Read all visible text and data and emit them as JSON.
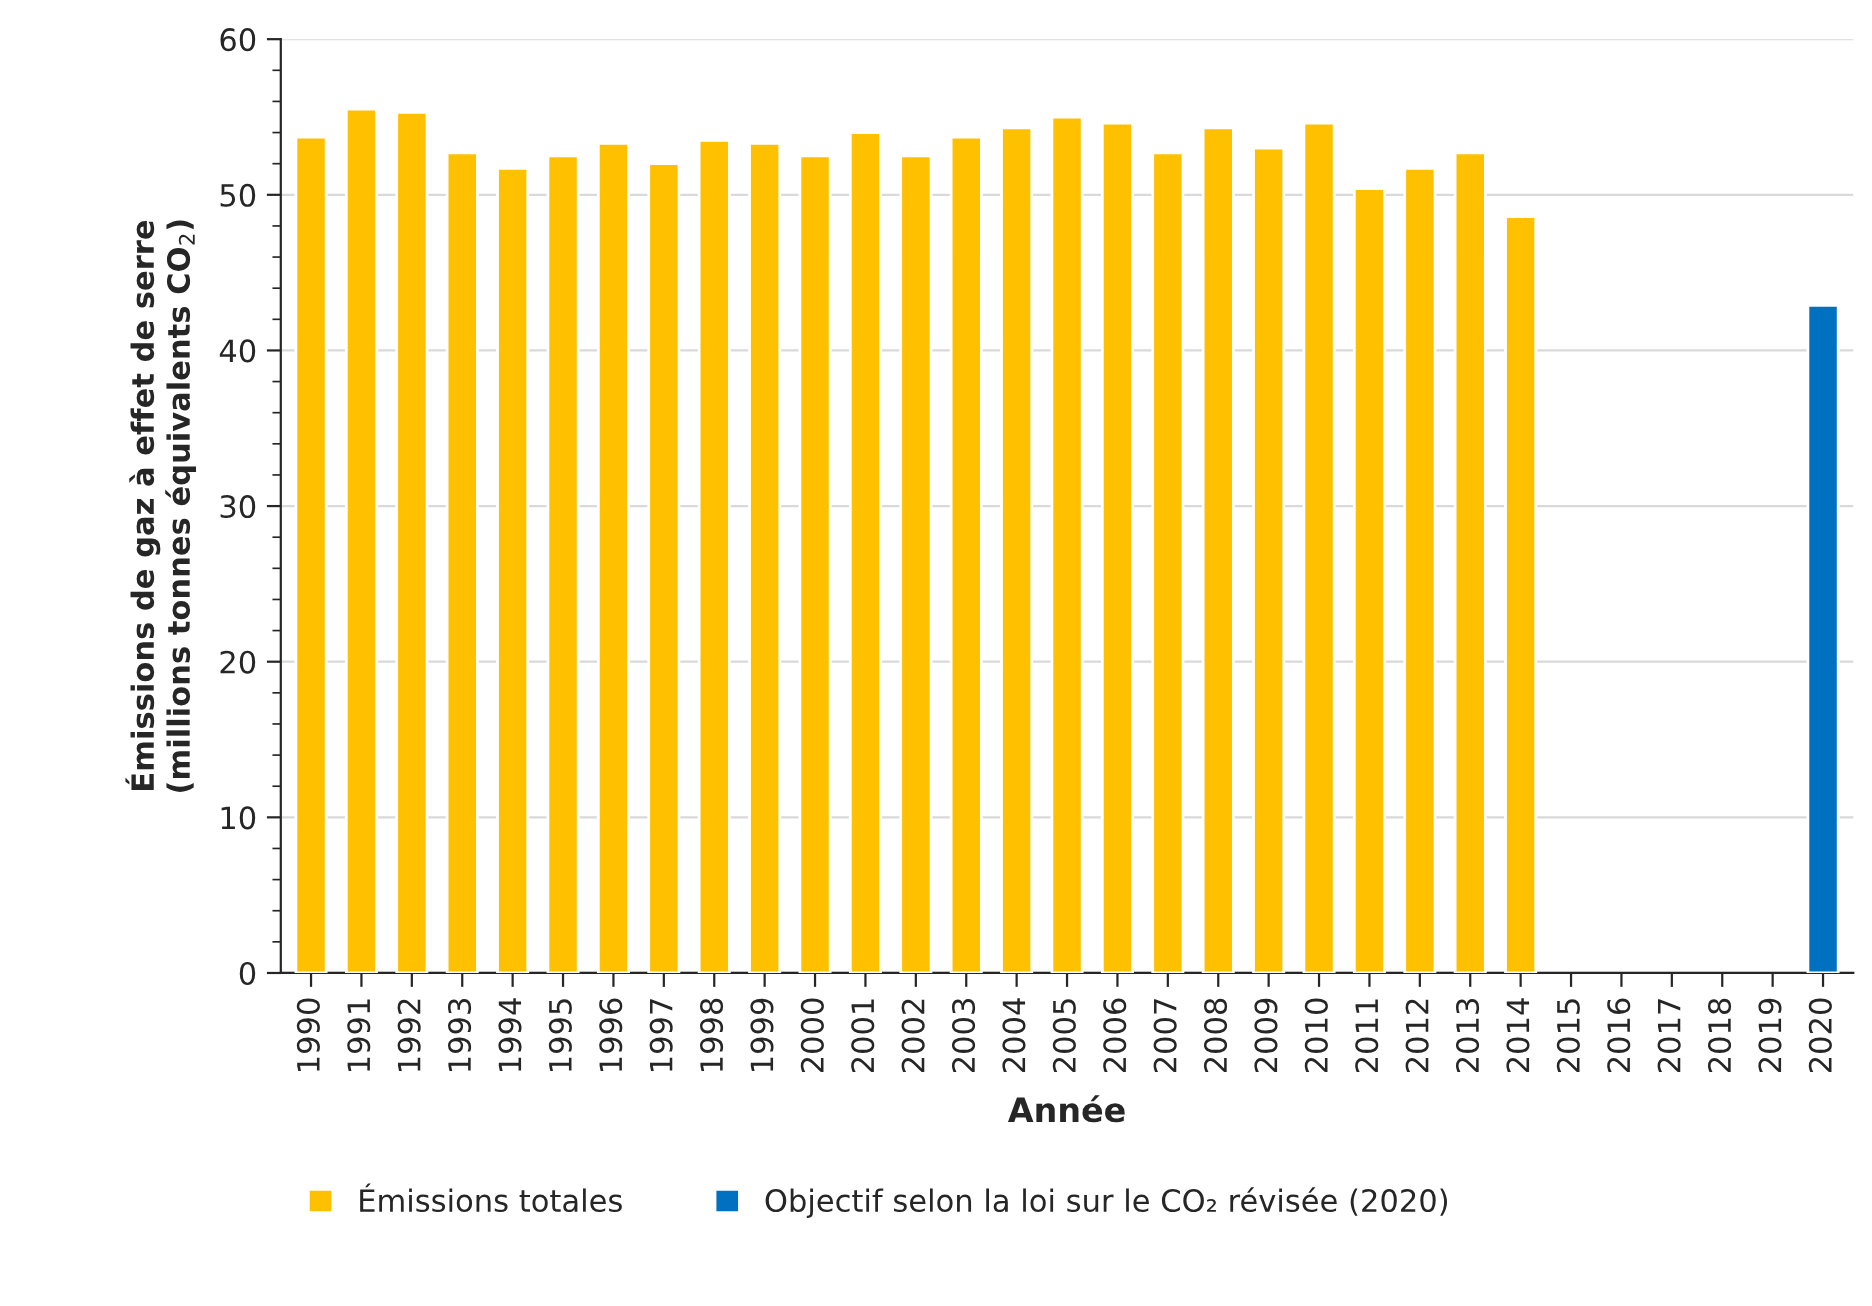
{
  "chart_data": {
    "type": "bar",
    "xlabel": "Année",
    "ylabel": "Émissions de gaz à effet de serre\n(millions tonnes équivalents CO$_{2}$)",
    "categories": [
      "1990",
      "1991",
      "1992",
      "1993",
      "1994",
      "1995",
      "1996",
      "1997",
      "1998",
      "1999",
      "2000",
      "2001",
      "2002",
      "2003",
      "2004",
      "2005",
      "2006",
      "2007",
      "2008",
      "2009",
      "2010",
      "2011",
      "2012",
      "2013",
      "2014",
      "2015",
      "2016",
      "2017",
      "2018",
      "2019",
      "2020"
    ],
    "series": [
      {
        "name": "Émissions totales",
        "color": "#ffc000",
        "values": [
          53.7,
          55.5,
          55.3,
          52.7,
          51.7,
          52.5,
          53.3,
          52.0,
          53.5,
          53.3,
          52.5,
          54.0,
          52.5,
          53.7,
          54.3,
          55.0,
          54.6,
          52.7,
          54.3,
          53.0,
          54.6,
          50.4,
          51.7,
          52.7,
          48.6,
          null,
          null,
          null,
          null,
          null,
          null
        ]
      },
      {
        "name": "Objectif selon la loi sur le CO₂ révisée (2020)",
        "color": "#0070c0",
        "values": [
          null,
          null,
          null,
          null,
          null,
          null,
          null,
          null,
          null,
          null,
          null,
          null,
          null,
          null,
          null,
          null,
          null,
          null,
          null,
          null,
          null,
          null,
          null,
          null,
          null,
          null,
          null,
          null,
          null,
          null,
          42.9
        ]
      }
    ],
    "ylim": [
      0,
      60
    ],
    "yticks": [
      0,
      10,
      20,
      30,
      40,
      50,
      60
    ],
    "grid": "y",
    "legend": "bottom"
  }
}
